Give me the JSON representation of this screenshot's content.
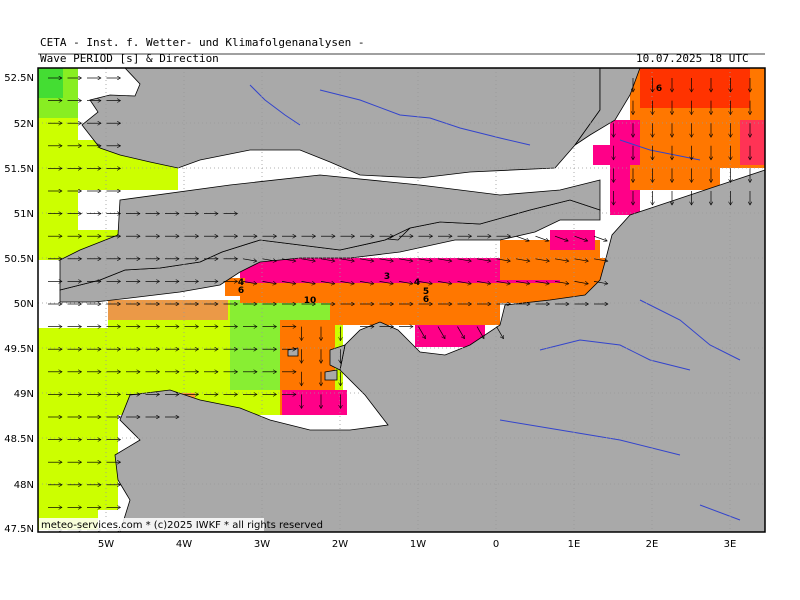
{
  "header": {
    "title": "CETA - Inst. f. Wetter- und Klimafolgenanalysen -",
    "parameter": "Wave PERIOD [s] & Direction",
    "valid_time": "10.07.2025 18 UTC"
  },
  "axes": {
    "lat_labels": [
      "52.5N",
      "52N",
      "51.5N",
      "51N",
      "50.5N",
      "50N",
      "49.5N",
      "49N",
      "48.5N",
      "48N",
      "47.5N"
    ],
    "lon_labels": [
      "5W",
      "4W",
      "3W",
      "2W",
      "1W",
      "0",
      "1E",
      "2E",
      "3E"
    ]
  },
  "contour_labels": [
    "6",
    "3",
    "4",
    "5",
    "6",
    "10",
    "4",
    "6"
  ],
  "credit": "meteo-services.com * (c)2025 IWKF * all rights reserved",
  "colors": {
    "land": "#a9a9a9",
    "coast": "#000000",
    "rivers": "#3344cc",
    "grid": "#999999",
    "period_high": "#ccff00",
    "period_10": "#88ff33",
    "period_mid": "#ff7700",
    "period_low": "#ff0088"
  }
}
